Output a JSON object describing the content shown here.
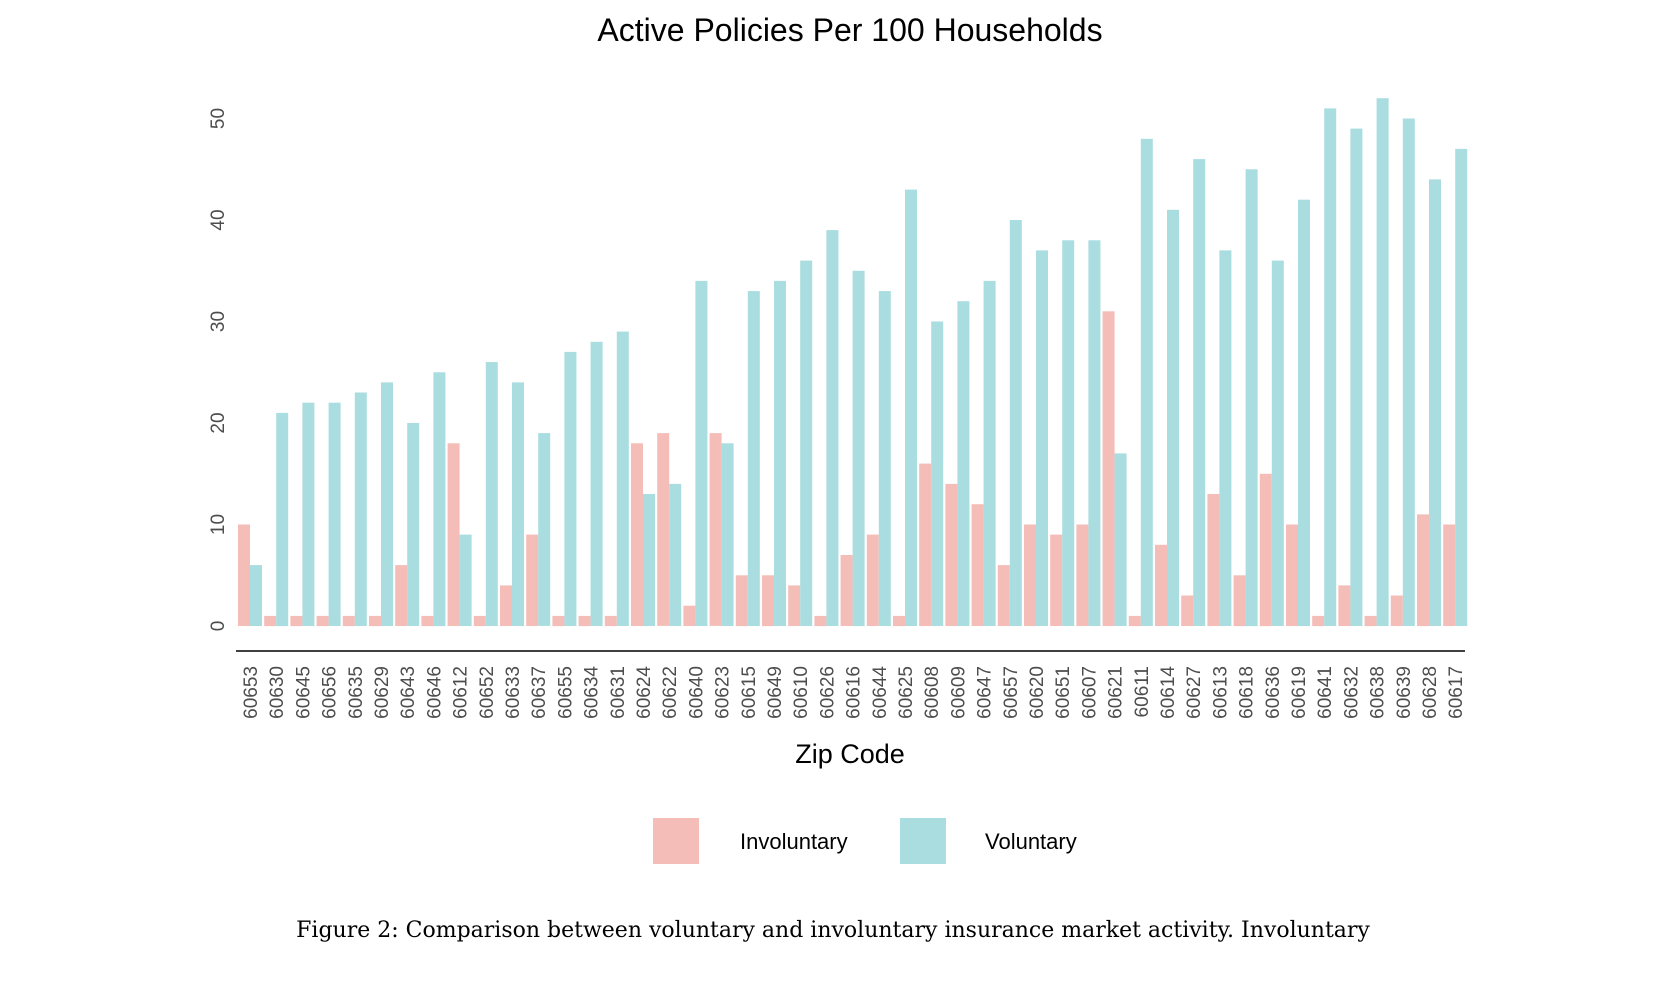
{
  "chart_data": {
    "type": "bar",
    "title": "Active Policies Per 100 Households",
    "xlabel": "Zip Code",
    "ylabel": "",
    "ylim": [
      0,
      53
    ],
    "yticks": [
      0,
      10,
      20,
      30,
      40,
      50
    ],
    "grid": false,
    "legend_position": "bottom",
    "categories": [
      "60653",
      "60630",
      "60645",
      "60656",
      "60635",
      "60629",
      "60643",
      "60646",
      "60612",
      "60652",
      "60633",
      "60637",
      "60655",
      "60634",
      "60631",
      "60624",
      "60622",
      "60640",
      "60623",
      "60615",
      "60649",
      "60610",
      "60626",
      "60616",
      "60644",
      "60625",
      "60608",
      "60609",
      "60647",
      "60657",
      "60620",
      "60651",
      "60607",
      "60621",
      "60611",
      "60614",
      "60627",
      "60613",
      "60618",
      "60636",
      "60619",
      "60641",
      "60632",
      "60638",
      "60639",
      "60628",
      "60617"
    ],
    "series": [
      {
        "name": "Involuntary",
        "color": "#f4bdb7",
        "values": [
          10,
          1,
          1,
          1,
          1,
          1,
          6,
          1,
          18,
          1,
          4,
          9,
          1,
          1,
          1,
          18,
          19,
          2,
          19,
          5,
          5,
          4,
          1,
          7,
          9,
          1,
          16,
          14,
          12,
          6,
          10,
          9,
          10,
          31,
          1,
          8,
          3,
          13,
          5,
          15,
          10,
          1,
          4,
          1,
          3,
          11,
          10
        ]
      },
      {
        "name": "Voluntary",
        "color": "#a9dde0",
        "values": [
          6,
          21,
          22,
          22,
          23,
          24,
          20,
          25,
          9,
          26,
          24,
          19,
          27,
          28,
          29,
          13,
          14,
          34,
          18,
          33,
          34,
          36,
          39,
          35,
          33,
          43,
          30,
          32,
          34,
          40,
          37,
          38,
          38,
          17,
          48,
          41,
          46,
          37,
          45,
          36,
          42,
          51,
          49,
          52,
          50,
          44,
          47
        ]
      }
    ]
  },
  "caption": "Figure 2: Comparison between voluntary and involuntary insurance market activity. Involuntary"
}
